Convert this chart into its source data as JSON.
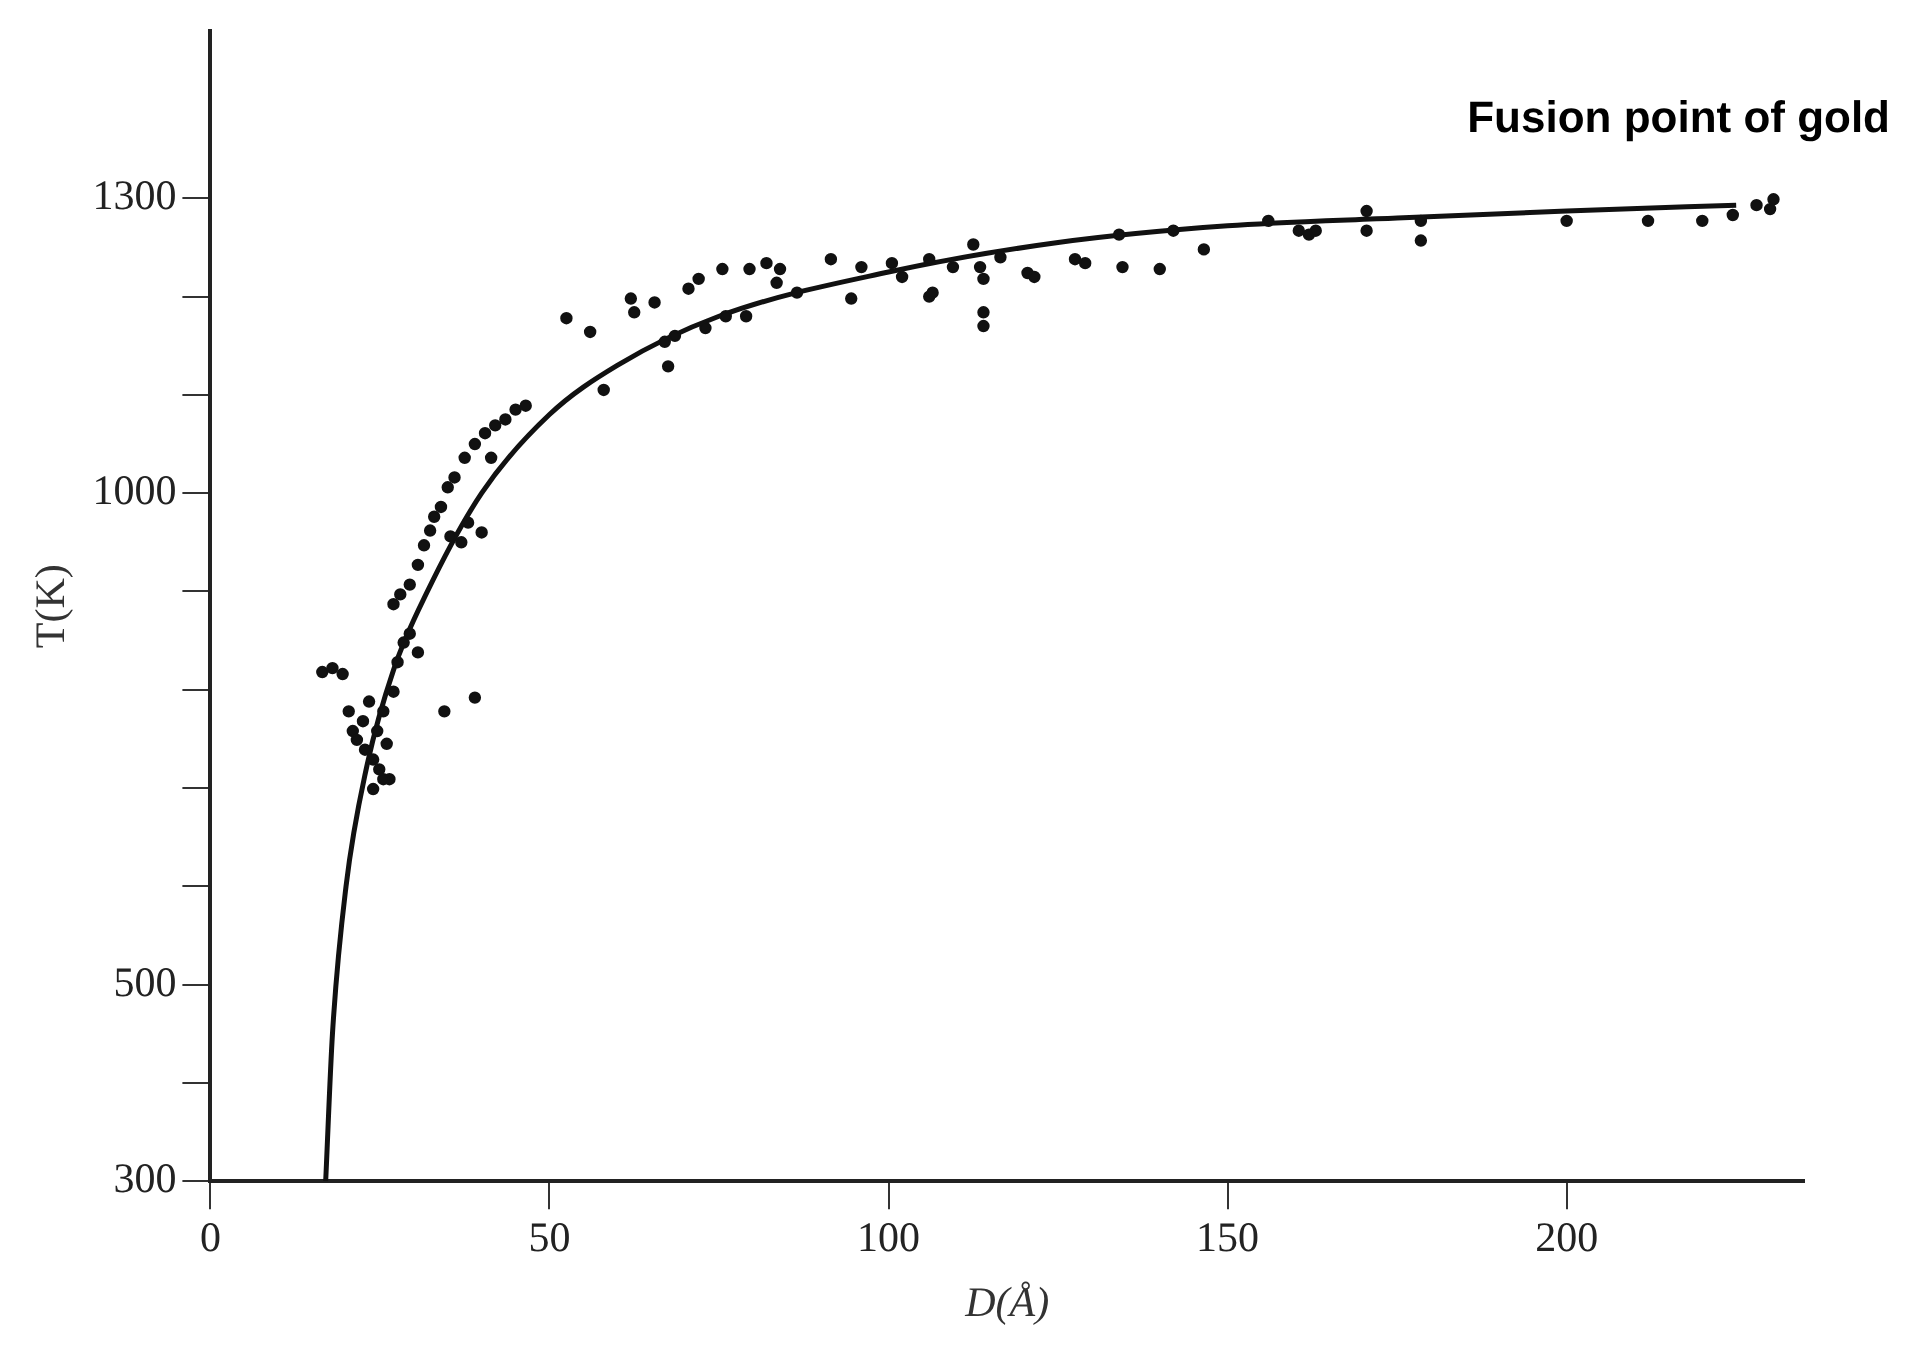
{
  "chart_data": {
    "type": "scatter",
    "xlabel": "D(Å)",
    "ylabel": "T(K)",
    "annotations": [
      "Fusion point of gold"
    ],
    "xlim": [
      0,
      235
    ],
    "ylim": [
      300,
      1470
    ],
    "xticks": [
      0,
      50,
      100,
      150,
      200
    ],
    "yticks": [
      300,
      {
        "value": 400,
        "label": null
      },
      500,
      {
        "value": 600,
        "label": null
      },
      {
        "value": 700,
        "label": null
      },
      {
        "value": 800,
        "label": null
      },
      {
        "value": 900,
        "label": null
      },
      1000,
      {
        "value": 1100,
        "label": null
      },
      {
        "value": 1200,
        "label": null
      },
      1300
    ],
    "grid": false,
    "legend": false,
    "series": [
      {
        "marker": "circle",
        "color": "#111111",
        "x": [
          16.5,
          18,
          19.5,
          20.4,
          21,
          21.6,
          22.5,
          22.8,
          23.4,
          24,
          24.6,
          25.5,
          26,
          26.4,
          24.9,
          27,
          27.6,
          28.5,
          27,
          28,
          29.4,
          30.6,
          29.4,
          30.6,
          31.5,
          32.4,
          33,
          34,
          35,
          36,
          35.4,
          37,
          38,
          40,
          37.5,
          39,
          40.5,
          42,
          43.5,
          45,
          46.5,
          41.4,
          34.5,
          39,
          24,
          25.5,
          52.5,
          56,
          58,
          62,
          62.5,
          65.5,
          67,
          67.5,
          68.5,
          70.5,
          72,
          73,
          75.5,
          76,
          79,
          79.5,
          82,
          83.5,
          84,
          86.5,
          91.5,
          94.5,
          96,
          100.5,
          102,
          106,
          106,
          106.5,
          109.5,
          112.5,
          113.5,
          114,
          114,
          114,
          116.5,
          120.5,
          121.5,
          127.5,
          129,
          134,
          134.5,
          140,
          142,
          146.5,
          156,
          160.5,
          162,
          163,
          170.5,
          170.5,
          178.5,
          178.5,
          200,
          212,
          220,
          224.5,
          228,
          230,
          230.5
        ],
        "values": [
          818,
          822,
          816,
          778,
          758,
          749,
          768,
          739,
          788,
          729,
          758,
          778,
          745,
          709,
          719,
          798,
          828,
          848,
          887,
          897,
          857,
          838,
          907,
          927,
          947,
          962,
          976,
          986,
          1006,
          1016,
          956,
          950,
          970,
          960,
          1036,
          1050,
          1061,
          1069,
          1075,
          1085,
          1089,
          1036,
          778,
          792,
          699,
          709,
          1178,
          1164,
          1105,
          1198,
          1184,
          1194,
          1154,
          1129,
          1160,
          1208,
          1218,
          1168,
          1228,
          1180,
          1180,
          1228,
          1234,
          1214,
          1228,
          1204,
          1238,
          1198,
          1230,
          1234,
          1220,
          1200,
          1238,
          1204,
          1230,
          1253,
          1230,
          1218,
          1184,
          1170,
          1240,
          1224,
          1220,
          1238,
          1234,
          1263,
          1230,
          1228,
          1267,
          1248,
          1277,
          1267,
          1263,
          1267,
          1287,
          1267,
          1277,
          1257,
          1277,
          1277,
          1277,
          1283,
          1293,
          1289,
          1299
        ]
      },
      {
        "type": "line",
        "color": "#111111",
        "x": [
          17,
          18,
          20,
          23,
          27,
          32,
          40,
          50,
          60,
          75,
          100,
          125,
          150,
          175,
          200,
          225
        ],
        "values": [
          300,
          450,
          600,
          720,
          820,
          900,
          1000,
          1080,
          1130,
          1180,
          1225,
          1255,
          1272,
          1280,
          1287,
          1293
        ]
      }
    ]
  }
}
